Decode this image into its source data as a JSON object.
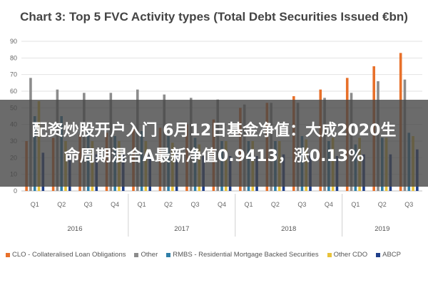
{
  "overlay": {
    "line1": "配资炒股开户入门 6月12日基金净值：大成2020生",
    "line2": "命周期混合A最新净值0.9413，涨0.13%"
  },
  "chart_data": {
    "type": "bar",
    "title": "Chart 3: Top 5 FVC Activity types (Total Debt Securities Issued €bn)",
    "xlabel": "",
    "ylabel": "",
    "ylim": [
      0,
      90
    ],
    "yticks": [
      0,
      10,
      20,
      30,
      40,
      50,
      60,
      70,
      80,
      90
    ],
    "grid": true,
    "legend_position": "bottom",
    "categories": [
      "Q1",
      "Q2",
      "Q3",
      "Q4",
      "Q1",
      "Q2",
      "Q3",
      "Q4",
      "Q1",
      "Q2",
      "Q3",
      "Q4",
      "Q1",
      "Q2",
      "Q3"
    ],
    "years": [
      {
        "label": "2016",
        "quarters": 4
      },
      {
        "label": "2017",
        "quarters": 4
      },
      {
        "label": "2018",
        "quarters": 4
      },
      {
        "label": "2019",
        "quarters": 3
      }
    ],
    "series": [
      {
        "name": "CLO - Collateralised Loan Obligations",
        "color": "#e8702a",
        "values": [
          30,
          32,
          34,
          35,
          38,
          38,
          40,
          43,
          50,
          53,
          57,
          61,
          68,
          75,
          83
        ]
      },
      {
        "name": "Other",
        "color": "#8c8c8c",
        "values": [
          68,
          61,
          59,
          59,
          61,
          58,
          56,
          55,
          52,
          53,
          53,
          56,
          59,
          66,
          67
        ]
      },
      {
        "name": "RMBS - Residential Mortgage Backed Securities",
        "color": "#2f7fa8",
        "values": [
          45,
          45,
          36,
          33,
          36,
          33,
          32,
          30,
          30,
          30,
          33,
          30,
          28,
          32,
          35
        ]
      },
      {
        "name": "Other CDO",
        "color": "#e8c23a",
        "values": [
          54,
          30,
          30,
          30,
          30,
          29,
          28,
          30,
          30,
          30,
          31,
          32,
          32,
          32,
          33
        ]
      },
      {
        "name": "ABCP",
        "color": "#1f3f8a",
        "values": [
          23,
          22,
          22,
          22,
          22,
          22,
          21,
          21,
          21,
          22,
          22,
          21,
          22,
          22,
          25
        ]
      }
    ]
  }
}
